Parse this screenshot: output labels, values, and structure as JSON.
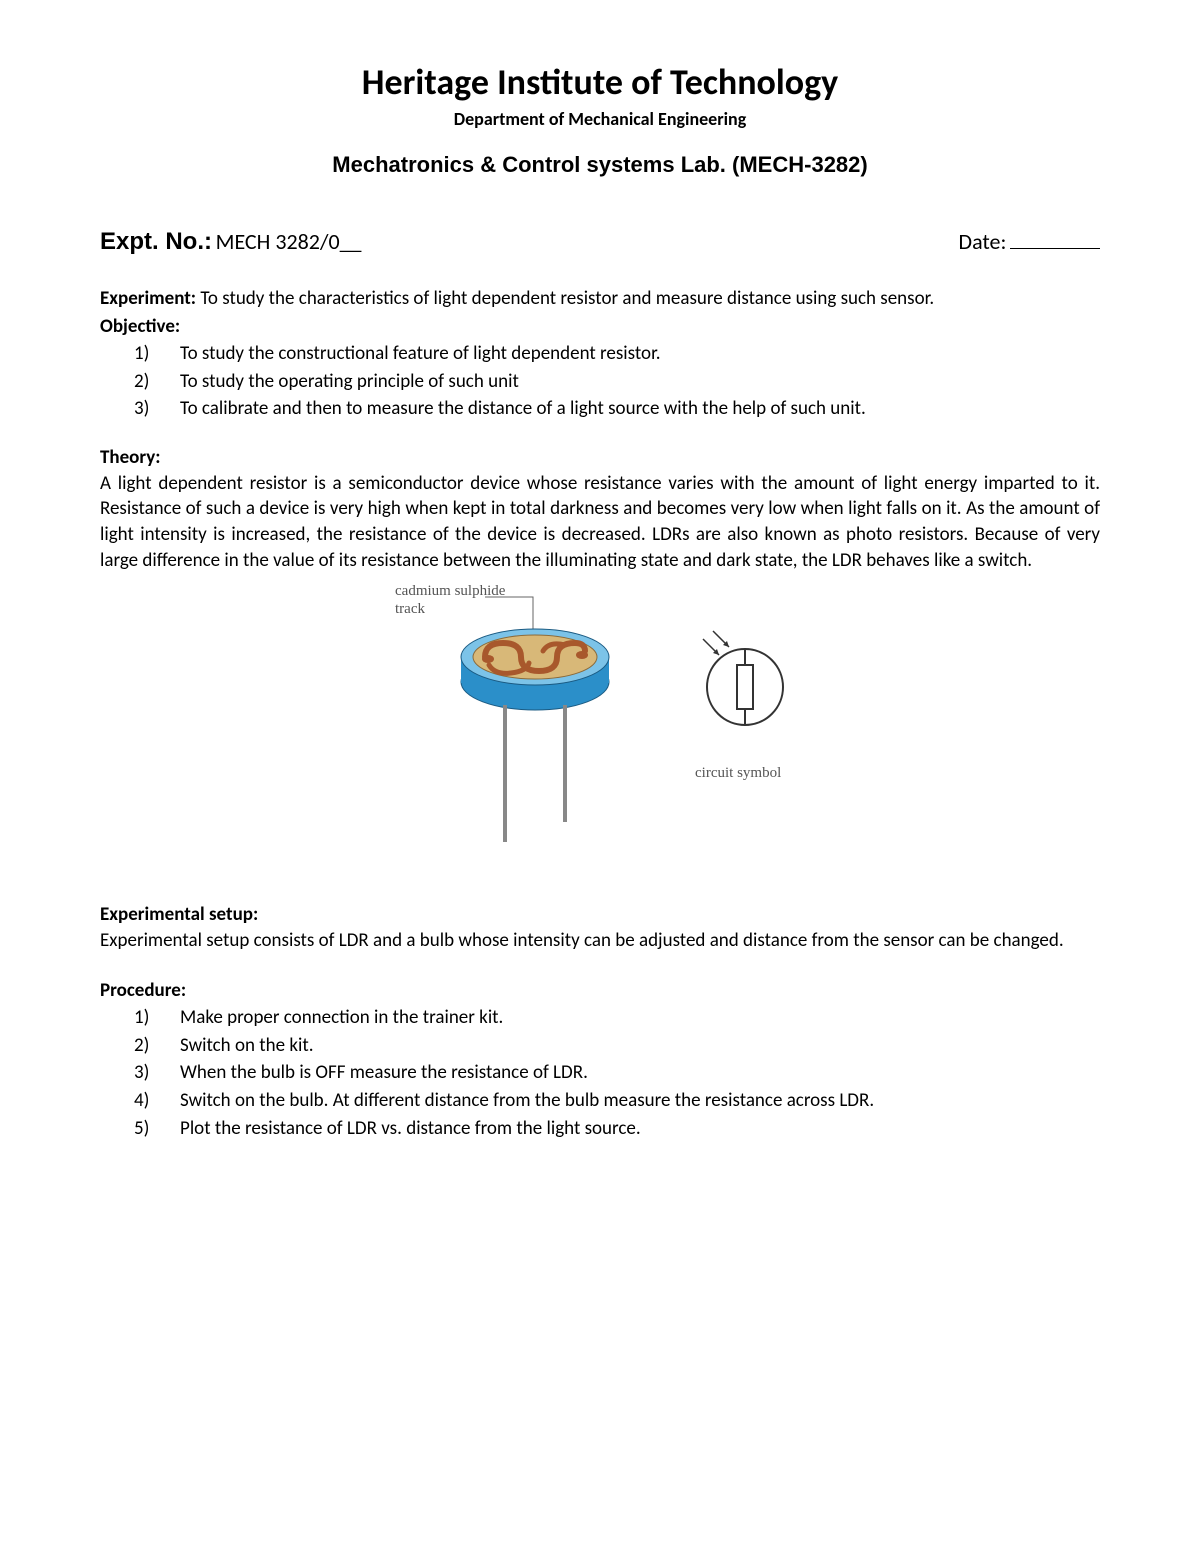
{
  "header": {
    "institute": "Heritage Institute of Technology",
    "department": "Department of Mechanical Engineering",
    "lab_title": "Mechatronics & Control systems Lab. (MECH-3282)"
  },
  "expt": {
    "label": "Expt. No",
    "value": "MECH 3282/0__",
    "date_label": "Date:"
  },
  "experiment": {
    "label": "Experiment:",
    "text": "To study the characteristics of light dependent resistor and measure distance using such sensor."
  },
  "objective": {
    "label": "Objective:",
    "items": [
      "To study the constructional feature of light dependent resistor.",
      "To study the operating principle of such unit",
      "To calibrate and then to measure the distance of a light source with the help of such unit."
    ]
  },
  "theory": {
    "label": "Theory:",
    "text": "A light dependent resistor is a semiconductor device whose resistance varies with the amount of light energy imparted to it. Resistance of such a device is very high when kept in total darkness and becomes very low when light falls on it. As the amount of light intensity is increased, the resistance of the device is decreased. LDRs are also known as photo resistors. Because of very large difference in the value of its resistance between the illuminating state and dark state, the LDR behaves like a switch."
  },
  "figure": {
    "track_label": "cadmium sulphide\ntrack",
    "symbol_label": "circuit symbol",
    "colors": {
      "body_side": "#2b8fc9",
      "body_top": "#7cc3e8",
      "top_surface": "#d8b878",
      "track": "#a8582c",
      "lead": "#888888",
      "outline": "#333333",
      "label_line": "#666666"
    }
  },
  "setup": {
    "label": "Experimental setup:",
    "text": "Experimental setup consists of LDR and a bulb whose intensity can be adjusted and distance from the sensor can be changed."
  },
  "procedure": {
    "label": "Procedure:",
    "items": [
      "Make proper connection in the trainer kit.",
      "Switch on the kit.",
      "When the bulb is OFF measure the resistance of LDR.",
      "Switch on the bulb. At different distance from the bulb measure the resistance across LDR.",
      "Plot the resistance of LDR vs. distance from the light source."
    ]
  }
}
